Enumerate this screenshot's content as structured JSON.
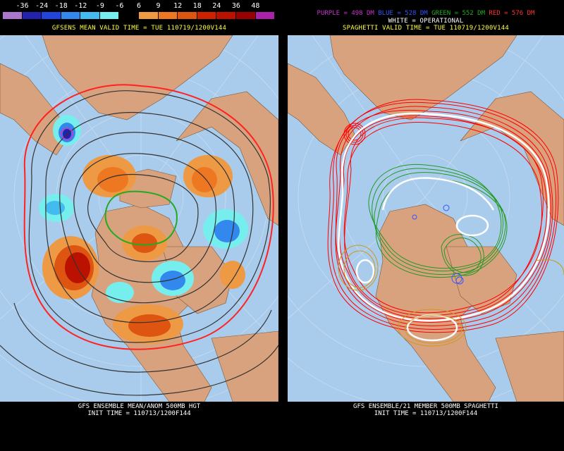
{
  "left": {
    "colorbar": {
      "labels": [
        "-36",
        "-24",
        "-18",
        "-12",
        "-9",
        "-6",
        "6",
        "9",
        "12",
        "18",
        "24",
        "36",
        "48"
      ],
      "colors": [
        "#aa77cc",
        "#2222aa",
        "#2244dd",
        "#3388ee",
        "#44bbee",
        "#77eeee",
        "#000000",
        "#ee9944",
        "#ee7722",
        "#dd5511",
        "#cc2200",
        "#bb1100",
        "#990000",
        "#aa22aa"
      ]
    },
    "title": "GFSENS MEAN VALID TIME = TUE 110719/1200V144",
    "footer_line1": "GFS ENSEMBLE MEAN/ANOM 500MB HGT",
    "footer_line2": "INIT TIME = 110713/1200F144"
  },
  "right": {
    "legend": {
      "purple": "PURPLE = 498 DM",
      "blue": "BLUE = 528 DM",
      "green": "GREEN = 552 DM",
      "red": "RED = 576 DM",
      "white": "WHITE = OPERATIONAL"
    },
    "title": "SPAGHETTI VALID TIME = TUE 110719/1200V144",
    "footer_line1": "GFS ENSEMBLE/21 MEMBER 500MB SPAGHETTI",
    "footer_line2": "INIT TIME = 110713/1200F144"
  },
  "colors": {
    "ocean": "#a9ccec",
    "land": "#d9a27e",
    "purple_contour": "#cc33cc",
    "blue_contour": "#3355ff",
    "green_contour": "#22aa22",
    "red_contour": "#ff0000",
    "white_contour": "#ffffff",
    "gold_contour": "#cc9922"
  }
}
